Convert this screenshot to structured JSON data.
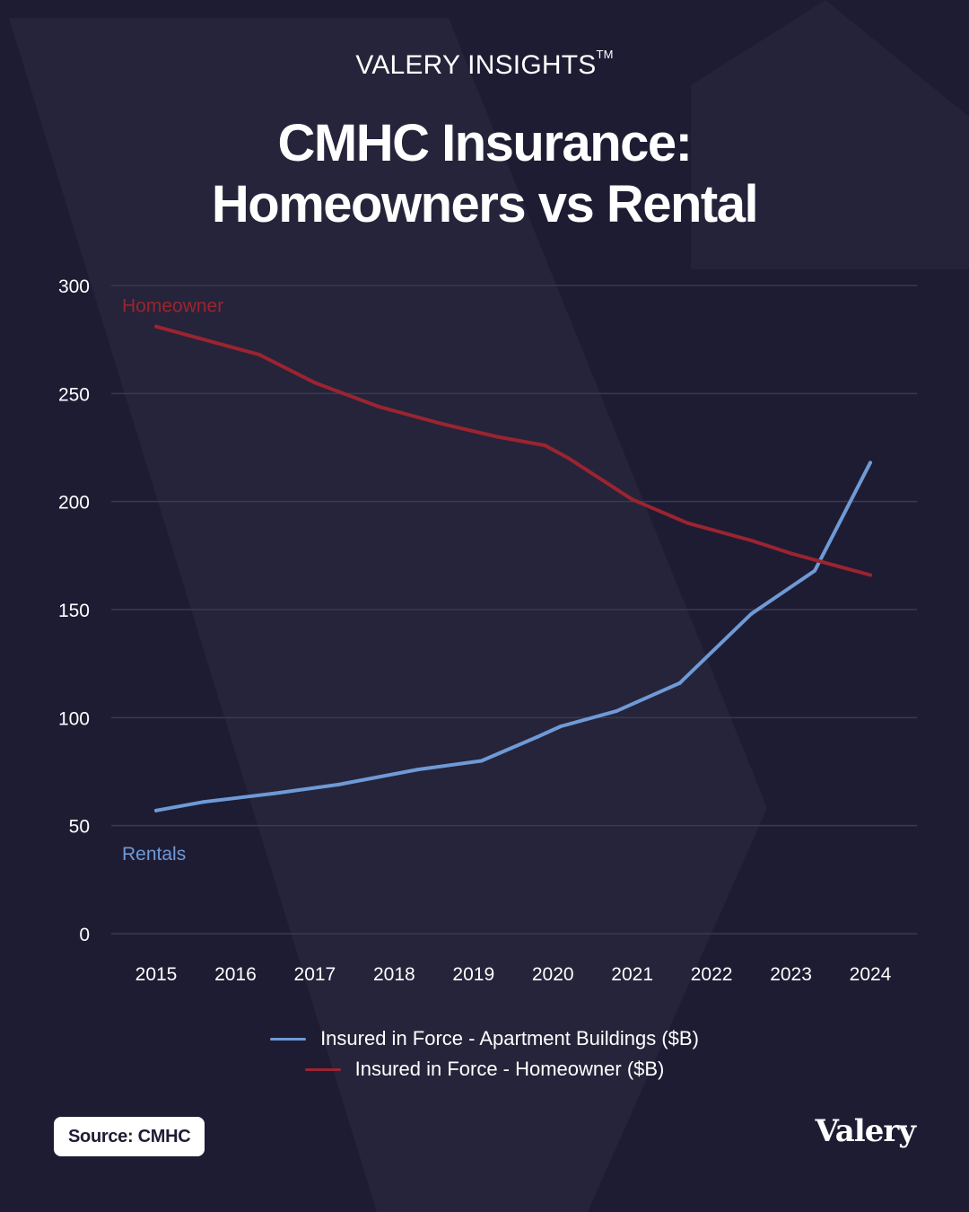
{
  "brand": {
    "name": "VALERY INSIGHTS",
    "mark": "TM"
  },
  "title": {
    "line1": "CMHC Insurance:",
    "line2": "Homeowners vs Rental"
  },
  "colors": {
    "background": "#1e1c33",
    "apartments": "#6f9ad6",
    "homeowner": "#9b2430",
    "grid": "#3a3852"
  },
  "chart_data": {
    "type": "line",
    "title": "CMHC Insurance: Homeowners vs Rental",
    "xlabel": "",
    "ylabel": "",
    "ylim": [
      0,
      300
    ],
    "yticks": [
      0,
      50,
      100,
      150,
      200,
      250,
      300
    ],
    "categories": [
      "2015",
      "2016",
      "2017",
      "2018",
      "2019",
      "2020",
      "2021",
      "2022",
      "2023",
      "2024"
    ],
    "grid": true,
    "legend_position": "bottom-center",
    "series": [
      {
        "name": "Insured in Force - Apartment Buildings ($B)",
        "label": "Rentals",
        "color": "#6f9ad6",
        "x": [
          2015.0,
          2015.6,
          2016.5,
          2017.3,
          2018.3,
          2019.1,
          2019.8,
          2020.1,
          2020.8,
          2021.6,
          2022.5,
          2023.3,
          2024.0
        ],
        "values": [
          57,
          61,
          65,
          69,
          76,
          80,
          91,
          96,
          103,
          116,
          148,
          168,
          218
        ]
      },
      {
        "name": "Insured in Force - Homeowner ($B)",
        "label": "Homeowner",
        "color": "#9b2430",
        "x": [
          2015.0,
          2015.6,
          2016.3,
          2017.0,
          2017.8,
          2018.6,
          2019.3,
          2019.9,
          2020.2,
          2021.0,
          2021.7,
          2022.5,
          2023.0,
          2023.4,
          2024.0
        ],
        "values": [
          281,
          275,
          268,
          255,
          244,
          236,
          230,
          226,
          220,
          201,
          190,
          182,
          176,
          172,
          166
        ]
      }
    ]
  },
  "legend": {
    "apartments": "Insured in Force - Apartment Buildings ($B)",
    "homeowner": "Insured in Force - Homeowner ($B)"
  },
  "source": "Source: CMHC",
  "logo": "Valery"
}
